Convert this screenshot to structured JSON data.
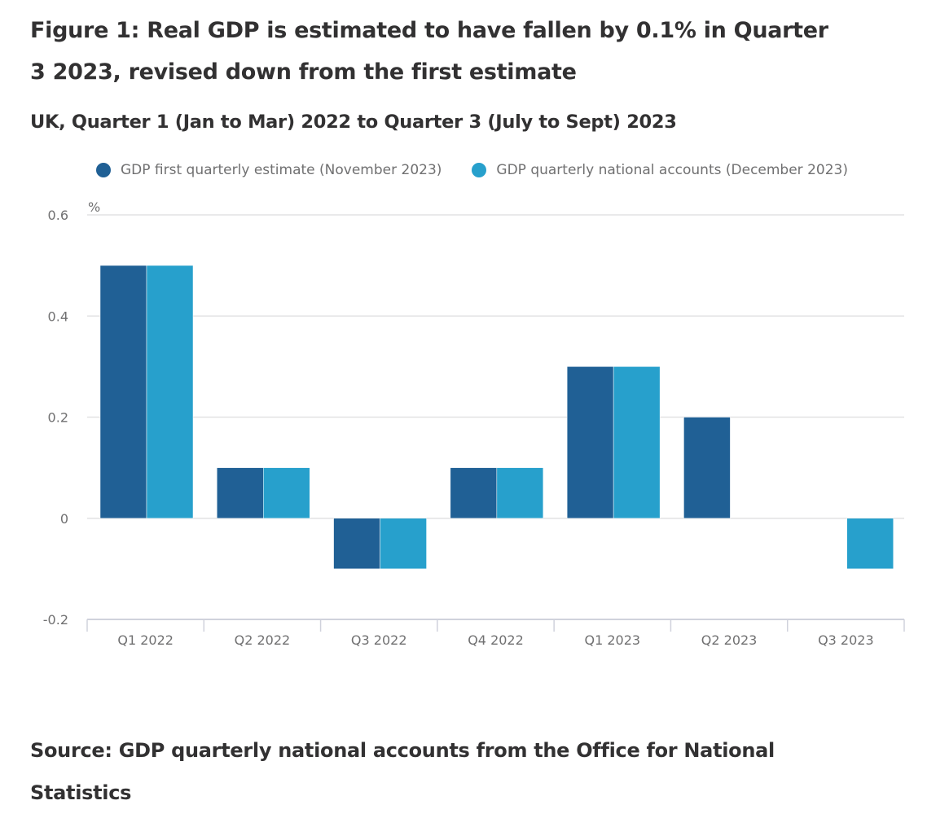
{
  "chart_data": {
    "type": "bar",
    "title": "Figure 1: Real GDP is estimated to have fallen by 0.1% in Quarter 3 2023, revised down from the first estimate",
    "subtitle": "UK, Quarter 1 (Jan to Mar) 2022 to Quarter 3 (July to Sept) 2023",
    "xlabel": "",
    "ylabel": "%",
    "ylim": [
      -0.2,
      0.6
    ],
    "yticks": [
      0.6,
      0.4,
      0.2,
      0,
      -0.2
    ],
    "ytick_labels": [
      "0.6",
      "0.4",
      "0.2",
      "0",
      "-0.2"
    ],
    "grid": true,
    "legend_position": "top",
    "categories": [
      "Q1 2022",
      "Q2 2022",
      "Q3 2022",
      "Q4 2022",
      "Q1 2023",
      "Q2 2023",
      "Q3 2023"
    ],
    "series": [
      {
        "name": "GDP first quarterly estimate (November 2023)",
        "color": "#206095",
        "values": [
          0.5,
          0.1,
          -0.1,
          0.1,
          0.3,
          0.2,
          null
        ]
      },
      {
        "name": "GDP quarterly national accounts (December 2023)",
        "color": "#27a0cc",
        "values": [
          0.5,
          0.1,
          -0.1,
          0.1,
          0.3,
          0.0,
          -0.1
        ]
      }
    ],
    "source": "Source: GDP quarterly national accounts from the Office for National Statistics"
  }
}
